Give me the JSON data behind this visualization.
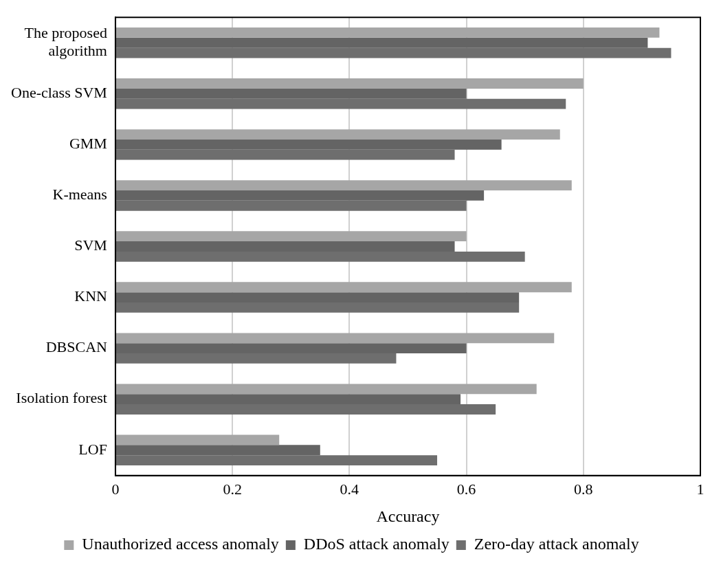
{
  "chart_data": {
    "type": "bar",
    "orientation": "horizontal",
    "xlabel": "Accuracy",
    "categories": [
      "The proposed algorithm",
      "One-class SVM",
      "GMM",
      "K-means",
      "SVM",
      "KNN",
      "DBSCAN",
      "Isolation forest",
      "LOF"
    ],
    "series": [
      {
        "name": "Unauthorized access anomaly",
        "color": "#a6a6a6",
        "values": [
          0.93,
          0.8,
          0.76,
          0.78,
          0.6,
          0.78,
          0.75,
          0.72,
          0.28
        ]
      },
      {
        "name": "DDoS attack anomaly",
        "color": "#646464",
        "values": [
          0.91,
          0.6,
          0.66,
          0.63,
          0.58,
          0.69,
          0.6,
          0.59,
          0.35
        ]
      },
      {
        "name": "Zero-day attack anomaly",
        "color": "#6e6e6e",
        "values": [
          0.95,
          0.77,
          0.58,
          0.6,
          0.7,
          0.69,
          0.48,
          0.65,
          0.55
        ]
      }
    ],
    "xlim": [
      0,
      1
    ],
    "xticks": [
      0,
      0.2,
      0.4,
      0.6,
      0.8,
      1
    ],
    "grid": "x",
    "legend": "bottom"
  }
}
